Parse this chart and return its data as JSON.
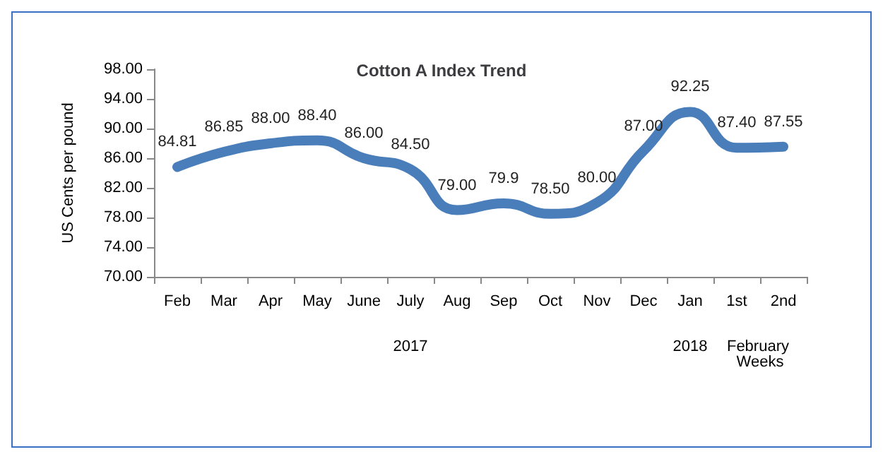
{
  "chart_data": {
    "type": "line",
    "title": "Cotton A Index Trend",
    "ylabel": "US Cents per pound",
    "categories": [
      "Feb",
      "Mar",
      "Apr",
      "May",
      "June",
      "July",
      "Aug",
      "Sep",
      "Oct",
      "Nov",
      "Dec",
      "Jan",
      "1st",
      "2nd"
    ],
    "series": [
      {
        "color": "#4a7ebb",
        "values": [
          84.81,
          86.85,
          88.0,
          88.4,
          86.0,
          84.5,
          79.0,
          79.9,
          78.5,
          80.0,
          87.0,
          92.25,
          87.4,
          87.55
        ],
        "value_labels": [
          "84.81",
          "86.85",
          "88.00",
          "88.40",
          "86.00",
          "84.50",
          "79.00",
          "79.9",
          "78.50",
          "80.00",
          "87.00",
          "92.25",
          "87.40",
          "87.55"
        ]
      }
    ],
    "ylim": [
      70,
      98
    ],
    "yticks": [
      {
        "value": 70,
        "label": "70.00"
      },
      {
        "value": 74,
        "label": "74.00"
      },
      {
        "value": 78,
        "label": "78.00"
      },
      {
        "value": 82,
        "label": "82.00"
      },
      {
        "value": 86,
        "label": "86.00"
      },
      {
        "value": 90,
        "label": "90.00"
      },
      {
        "value": 94,
        "label": "94.00"
      },
      {
        "value": 98,
        "label": "98.00"
      }
    ],
    "annotations": [
      "2017",
      "2018",
      "February Weeks"
    ],
    "grid": false,
    "marker": "none",
    "line_style": "solid"
  }
}
